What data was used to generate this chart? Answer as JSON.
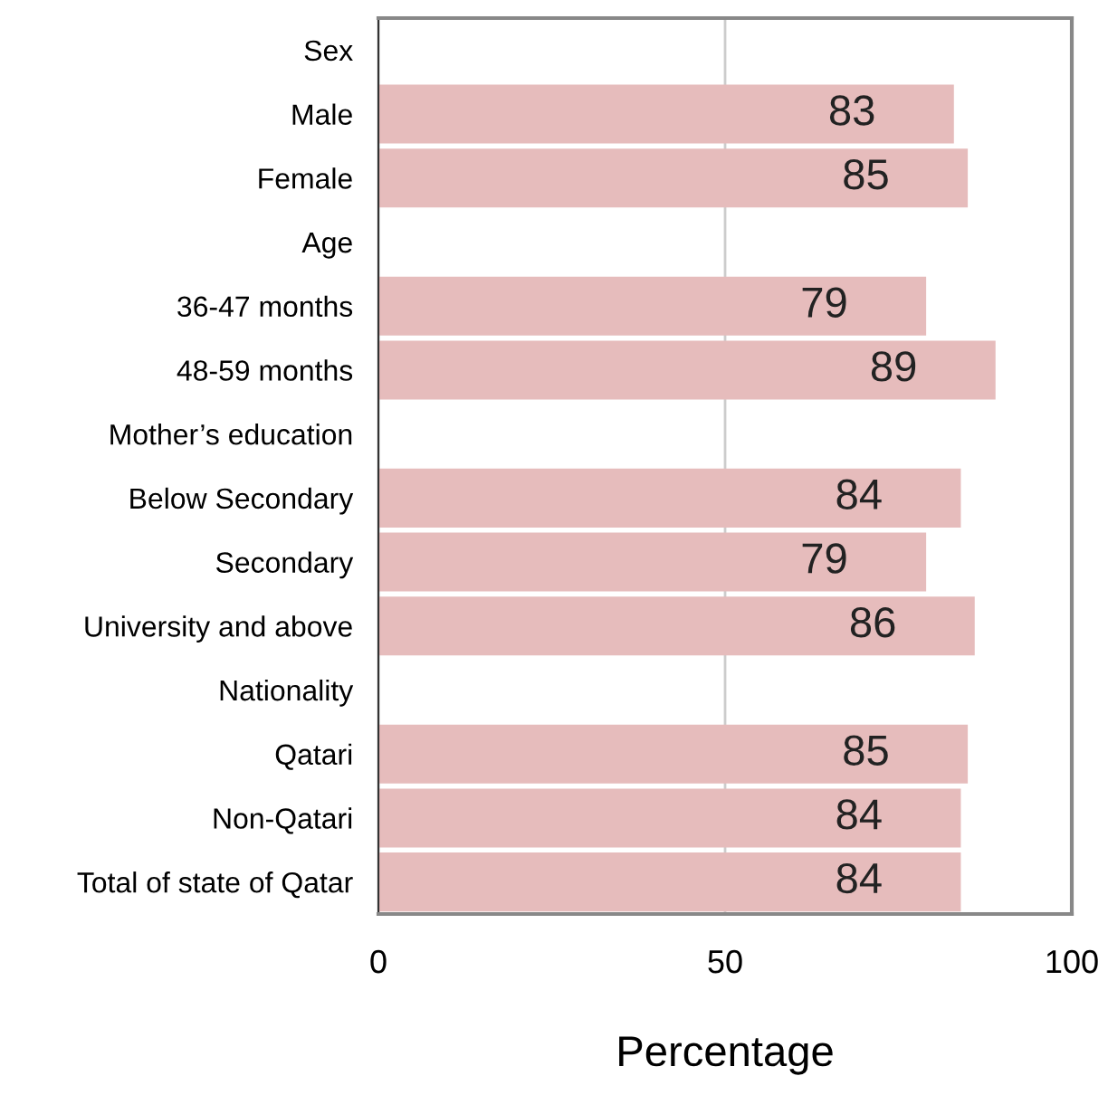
{
  "chart_data": {
    "type": "bar",
    "orientation": "horizontal",
    "xlabel": "Percentage",
    "categories": [
      "Sex",
      "Male",
      "Female",
      "Age",
      "36-47 months",
      "48-59 months",
      "Mother’s education",
      "Below Secondary",
      "Secondary",
      "University and above",
      "Nationality",
      "Qatari",
      "Non-Qatari",
      "Total of state of Qatar"
    ],
    "values": [
      null,
      83,
      85,
      null,
      79,
      89,
      null,
      84,
      79,
      86,
      null,
      85,
      84,
      84
    ],
    "color": "#e6bcbc",
    "xlim": [
      0,
      100
    ],
    "xticks": [
      0,
      50,
      100
    ],
    "grid": "x",
    "data_labels": true
  }
}
